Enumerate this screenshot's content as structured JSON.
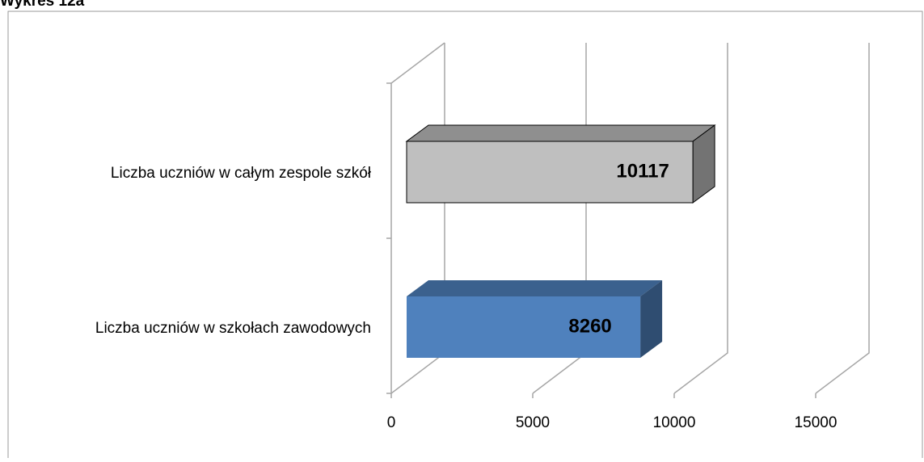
{
  "chart_data": {
    "type": "bar3d_horizontal",
    "title": "Wykres 12a",
    "categories": [
      "Liczba uczniów w szkołach zawodowych",
      "Liczba uczniów w całym zespole szkół"
    ],
    "values": [
      8260,
      10117
    ],
    "colors": [
      "#4f81bd",
      "#bfbfbf"
    ],
    "xlim": [
      0,
      15000
    ],
    "xticks": [
      0,
      5000,
      10000,
      15000
    ],
    "grid": true
  }
}
